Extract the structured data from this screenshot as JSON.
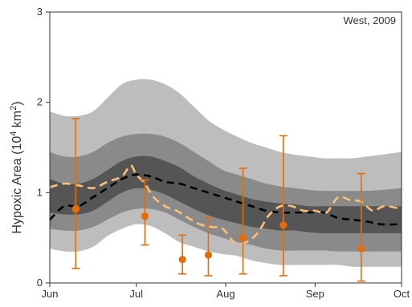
{
  "chart_data": {
    "type": "line",
    "annotation": "West, 2009",
    "ylabel": "Hypoxic Area (10",
    "ylabel_sup": "4",
    "ylabel_mid": " km",
    "ylabel_sup2": "2",
    "ylabel_end": ")",
    "xlim": [
      0,
      122
    ],
    "ylim": [
      0,
      3
    ],
    "x_ticks": [
      {
        "label": "Jun",
        "day": 0
      },
      {
        "label": "Jul",
        "day": 30
      },
      {
        "label": "Aug",
        "day": 61
      },
      {
        "label": "Sep",
        "day": 92
      },
      {
        "label": "Oct",
        "day": 122
      }
    ],
    "y_ticks": [
      {
        "label": "0",
        "value": 0
      },
      {
        "label": "1",
        "value": 1
      },
      {
        "label": "2",
        "value": 2
      },
      {
        "label": "3",
        "value": 3
      }
    ],
    "colors": {
      "band_outer": "#bdbdbd",
      "band_mid": "#8a8a8a",
      "band_inner": "#555555",
      "median": "#000000",
      "model": "#fbbf76",
      "observations": "#e46c0a"
    },
    "x": [
      0,
      5,
      10,
      15,
      20,
      25,
      30,
      35,
      40,
      45,
      50,
      55,
      60,
      65,
      70,
      75,
      80,
      85,
      90,
      95,
      100,
      105,
      110,
      115,
      122
    ],
    "bands": {
      "outer_lower": [
        0.38,
        0.35,
        0.35,
        0.4,
        0.52,
        0.6,
        0.65,
        0.63,
        0.55,
        0.45,
        0.4,
        0.35,
        0.32,
        0.3,
        0.25,
        0.22,
        0.2,
        0.2,
        0.2,
        0.2,
        0.2,
        0.18,
        0.18,
        0.18,
        0.18
      ],
      "outer_upper": [
        1.9,
        1.85,
        1.85,
        1.9,
        2.05,
        2.2,
        2.25,
        2.25,
        2.2,
        2.1,
        1.95,
        1.8,
        1.7,
        1.62,
        1.55,
        1.5,
        1.45,
        1.42,
        1.4,
        1.38,
        1.38,
        1.38,
        1.4,
        1.42,
        1.45
      ],
      "mid_lower": [
        0.6,
        0.58,
        0.58,
        0.62,
        0.7,
        0.78,
        0.82,
        0.82,
        0.78,
        0.7,
        0.62,
        0.55,
        0.5,
        0.45,
        0.42,
        0.38,
        0.36,
        0.36,
        0.36,
        0.36,
        0.35,
        0.35,
        0.35,
        0.35,
        0.35
      ],
      "mid_upper": [
        1.45,
        1.4,
        1.4,
        1.45,
        1.55,
        1.62,
        1.65,
        1.65,
        1.62,
        1.55,
        1.45,
        1.35,
        1.25,
        1.2,
        1.15,
        1.1,
        1.07,
        1.05,
        1.03,
        1.02,
        1.02,
        1.02,
        1.02,
        1.03,
        1.05
      ],
      "inner_lower": [
        0.78,
        0.76,
        0.76,
        0.8,
        0.9,
        1.0,
        1.05,
        1.03,
        0.98,
        0.9,
        0.82,
        0.75,
        0.7,
        0.66,
        0.62,
        0.6,
        0.58,
        0.58,
        0.56,
        0.55,
        0.55,
        0.55,
        0.55,
        0.55,
        0.55
      ],
      "inner_upper": [
        1.15,
        1.1,
        1.1,
        1.15,
        1.25,
        1.35,
        1.4,
        1.4,
        1.35,
        1.28,
        1.18,
        1.1,
        1.03,
        0.98,
        0.93,
        0.9,
        0.88,
        0.87,
        0.85,
        0.85,
        0.85,
        0.85,
        0.85,
        0.85,
        0.85
      ]
    },
    "series": [
      {
        "key": "median",
        "dashed": true,
        "x": [
          0,
          5,
          10,
          15,
          20,
          25,
          30,
          35,
          40,
          45,
          50,
          55,
          60,
          65,
          70,
          75,
          80,
          85,
          90,
          95,
          100,
          105,
          110,
          115,
          122
        ],
        "y": [
          0.7,
          0.85,
          0.85,
          0.95,
          1.05,
          1.15,
          1.2,
          1.18,
          1.12,
          1.1,
          1.05,
          1.0,
          0.95,
          0.9,
          0.85,
          0.8,
          0.78,
          0.78,
          0.78,
          0.78,
          0.72,
          0.7,
          0.68,
          0.65,
          0.65
        ]
      },
      {
        "key": "model",
        "dashed": true,
        "x": [
          0,
          5,
          10,
          15,
          20,
          25,
          28,
          30,
          33,
          36,
          40,
          44,
          48,
          52,
          56,
          60,
          64,
          68,
          72,
          76,
          80,
          84,
          88,
          92,
          96,
          100,
          104,
          108,
          112,
          116,
          122
        ],
        "y": [
          1.06,
          1.1,
          1.08,
          1.05,
          1.12,
          1.18,
          1.3,
          1.2,
          1.1,
          0.95,
          0.85,
          0.8,
          0.72,
          0.65,
          0.62,
          0.6,
          0.45,
          0.45,
          0.55,
          0.75,
          0.85,
          0.85,
          0.8,
          0.8,
          0.78,
          0.95,
          0.92,
          0.9,
          0.8,
          0.85,
          0.82
        ]
      }
    ],
    "observations": [
      {
        "x": 9,
        "y": 0.82,
        "lower": 0.16,
        "upper": 1.82
      },
      {
        "x": 33,
        "y": 0.74,
        "lower": 0.42,
        "upper": 1.14
      },
      {
        "x": 46,
        "y": 0.26,
        "lower": 0.1,
        "upper": 0.53
      },
      {
        "x": 55,
        "y": 0.31,
        "lower": 0.08,
        "upper": 0.72
      },
      {
        "x": 67,
        "y": 0.5,
        "lower": 0.1,
        "upper": 1.27
      },
      {
        "x": 81,
        "y": 0.64,
        "lower": 0.08,
        "upper": 1.63
      },
      {
        "x": 108,
        "y": 0.38,
        "lower": 0.02,
        "upper": 1.21
      }
    ]
  }
}
